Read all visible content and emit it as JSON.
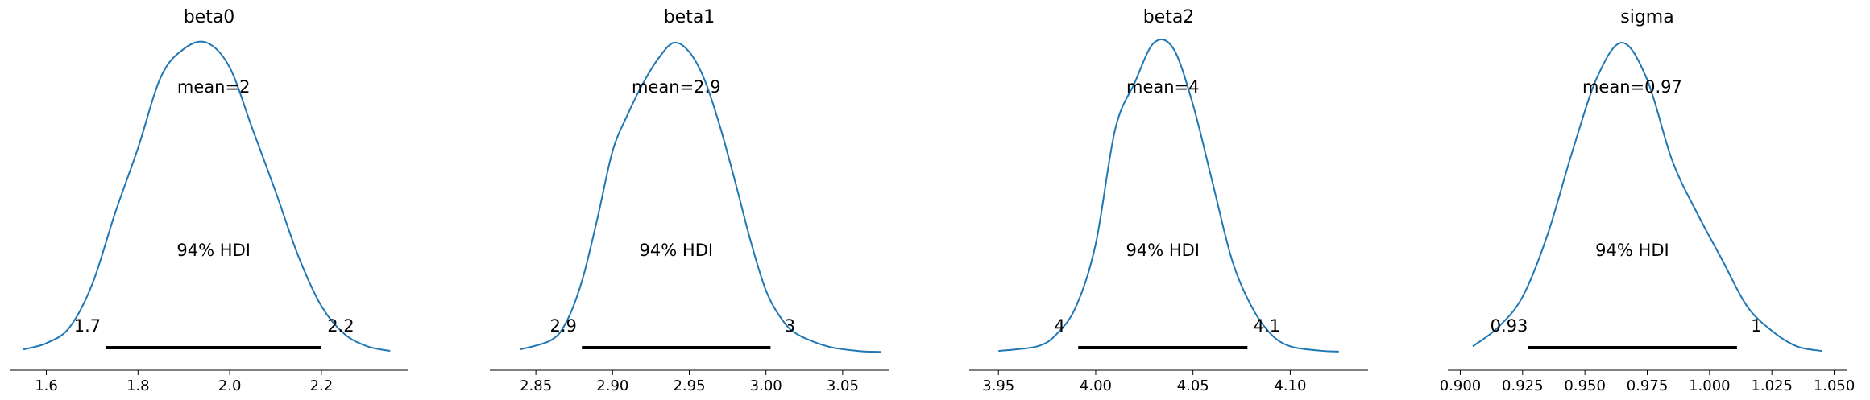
{
  "chart_data": [
    {
      "type": "area",
      "title": "beta0",
      "mean_label": "mean=2",
      "hdi_label": "94% HDI",
      "hdi": [
        1.73,
        2.2
      ],
      "hdi_low_label": "1.7",
      "hdi_high_label": "2.2",
      "xlim": [
        1.52,
        2.39
      ],
      "xticks": [
        1.6,
        1.8,
        2.0,
        2.2
      ],
      "xtick_labels": [
        "1.6",
        "1.8",
        "2.0",
        "2.2"
      ],
      "density": {
        "x": [
          1.55,
          1.6,
          1.65,
          1.7,
          1.75,
          1.8,
          1.85,
          1.9,
          1.95,
          2.0,
          2.05,
          2.1,
          2.15,
          2.2,
          2.25,
          2.3,
          2.35
        ],
        "y": [
          0.01,
          0.03,
          0.08,
          0.22,
          0.45,
          0.66,
          0.89,
          0.98,
          1.0,
          0.92,
          0.72,
          0.52,
          0.31,
          0.15,
          0.06,
          0.02,
          0.005
        ]
      }
    },
    {
      "type": "area",
      "title": "beta1",
      "mean_label": "mean=2.9",
      "hdi_label": "94% HDI",
      "hdi": [
        2.88,
        3.003
      ],
      "hdi_low_label": "2.9",
      "hdi_high_label": "3",
      "xlim": [
        2.82,
        3.08
      ],
      "xticks": [
        2.85,
        2.9,
        2.95,
        3.0,
        3.05
      ],
      "xtick_labels": [
        "2.85",
        "2.90",
        "2.95",
        "3.00",
        "3.05"
      ],
      "density": {
        "x": [
          2.84,
          2.86,
          2.87,
          2.88,
          2.89,
          2.9,
          2.91,
          2.92,
          2.93,
          2.94,
          2.95,
          2.96,
          2.97,
          2.98,
          2.99,
          3.0,
          3.01,
          3.02,
          3.04,
          3.06,
          3.075
        ],
        "y": [
          0.01,
          0.04,
          0.1,
          0.23,
          0.43,
          0.65,
          0.77,
          0.87,
          0.95,
          1.0,
          0.97,
          0.88,
          0.73,
          0.55,
          0.36,
          0.2,
          0.11,
          0.06,
          0.02,
          0.005,
          0.002
        ]
      }
    },
    {
      "type": "area",
      "title": "beta2",
      "mean_label": "mean=4",
      "hdi_label": "94% HDI",
      "hdi": [
        3.991,
        4.078
      ],
      "hdi_low_label": "4",
      "hdi_high_label": "4.1",
      "xlim": [
        3.935,
        4.14
      ],
      "xticks": [
        3.95,
        4.0,
        4.05,
        4.1
      ],
      "xtick_labels": [
        "3.95",
        "4.00",
        "4.05",
        "4.10"
      ],
      "density": {
        "x": [
          3.95,
          3.97,
          3.98,
          3.99,
          4.0,
          4.01,
          4.02,
          4.03,
          4.04,
          4.05,
          4.06,
          4.07,
          4.08,
          4.09,
          4.1,
          4.115,
          4.125
        ],
        "y": [
          0.005,
          0.02,
          0.06,
          0.15,
          0.35,
          0.72,
          0.87,
          1.0,
          0.98,
          0.8,
          0.55,
          0.3,
          0.15,
          0.06,
          0.02,
          0.006,
          0.003
        ]
      }
    },
    {
      "type": "area",
      "title": "sigma",
      "mean_label": "mean=0.97",
      "hdi_label": "94% HDI",
      "hdi": [
        0.927,
        1.011
      ],
      "hdi_low_label": "0.93",
      "hdi_high_label": "1",
      "xlim": [
        0.895,
        1.055
      ],
      "xticks": [
        0.9,
        0.925,
        0.95,
        0.975,
        1.0,
        1.025,
        1.05
      ],
      "xtick_labels": [
        "0.900",
        "0.925",
        "0.950",
        "0.975",
        "1.000",
        "1.025",
        "1.050"
      ],
      "density": {
        "x": [
          0.905,
          0.915,
          0.925,
          0.935,
          0.945,
          0.955,
          0.965,
          0.975,
          0.985,
          0.995,
          1.005,
          1.015,
          1.025,
          1.035,
          1.045
        ],
        "y": [
          0.02,
          0.08,
          0.18,
          0.38,
          0.65,
          0.89,
          1.0,
          0.88,
          0.62,
          0.45,
          0.3,
          0.15,
          0.07,
          0.02,
          0.005
        ]
      }
    }
  ],
  "colors": {
    "curve": "#1f77b4",
    "hdi_bar": "#000000",
    "axis": "#000000"
  }
}
